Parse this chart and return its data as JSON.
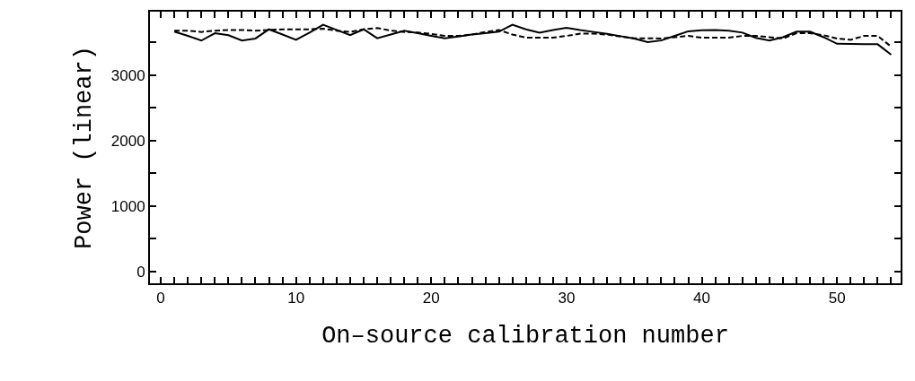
{
  "chart_data": {
    "type": "line",
    "xlabel": "On–source calibration number",
    "ylabel": "Power (linear)",
    "x": [
      1,
      2,
      3,
      4,
      5,
      6,
      7,
      8,
      9,
      10,
      11,
      12,
      13,
      14,
      15,
      16,
      17,
      18,
      19,
      20,
      21,
      22,
      23,
      24,
      25,
      26,
      27,
      28,
      29,
      30,
      31,
      32,
      33,
      34,
      35,
      36,
      37,
      38,
      39,
      40,
      41,
      42,
      43,
      44,
      45,
      46,
      47,
      48,
      49,
      50,
      51,
      52,
      53,
      54
    ],
    "series": [
      {
        "color": "#000000",
        "line_style": "solid",
        "values": [
          3665,
          3600,
          3528,
          3640,
          3610,
          3530,
          3560,
          3700,
          3620,
          3541,
          3650,
          3771,
          3690,
          3610,
          3700,
          3564,
          3620,
          3680,
          3640,
          3600,
          3564,
          3590,
          3620,
          3640,
          3665,
          3771,
          3700,
          3647,
          3690,
          3725,
          3690,
          3660,
          3630,
          3595,
          3560,
          3505,
          3530,
          3600,
          3670,
          3685,
          3690,
          3680,
          3650,
          3570,
          3530,
          3580,
          3665,
          3665,
          3580,
          3480,
          3476,
          3474,
          3472,
          3312
        ]
      },
      {
        "color": "#000000",
        "line_style": "dashed",
        "values": [
          3680,
          3680,
          3660,
          3680,
          3690,
          3690,
          3680,
          3690,
          3700,
          3700,
          3700,
          3710,
          3680,
          3660,
          3700,
          3720,
          3680,
          3660,
          3650,
          3630,
          3600,
          3600,
          3620,
          3660,
          3690,
          3620,
          3573,
          3573,
          3573,
          3600,
          3633,
          3633,
          3620,
          3590,
          3564,
          3564,
          3560,
          3580,
          3600,
          3573,
          3573,
          3573,
          3600,
          3600,
          3580,
          3560,
          3640,
          3640,
          3610,
          3560,
          3540,
          3600,
          3600,
          3436
        ]
      }
    ],
    "xlim": [
      -0.8,
      54.7
    ],
    "ylim": [
      -180,
      3970
    ],
    "xticks": [
      0,
      {
        "value": 1,
        "label": null
      },
      {
        "value": 2,
        "label": null
      },
      {
        "value": 3,
        "label": null
      },
      {
        "value": 4,
        "label": null
      },
      {
        "value": 5,
        "label": null
      },
      {
        "value": 6,
        "label": null
      },
      {
        "value": 7,
        "label": null
      },
      {
        "value": 8,
        "label": null
      },
      {
        "value": 9,
        "label": null
      },
      10,
      {
        "value": 11,
        "label": null
      },
      {
        "value": 12,
        "label": null
      },
      {
        "value": 13,
        "label": null
      },
      {
        "value": 14,
        "label": null
      },
      {
        "value": 15,
        "label": null
      },
      {
        "value": 16,
        "label": null
      },
      {
        "value": 17,
        "label": null
      },
      {
        "value": 18,
        "label": null
      },
      {
        "value": 19,
        "label": null
      },
      20,
      {
        "value": 21,
        "label": null
      },
      {
        "value": 22,
        "label": null
      },
      {
        "value": 23,
        "label": null
      },
      {
        "value": 24,
        "label": null
      },
      {
        "value": 25,
        "label": null
      },
      {
        "value": 26,
        "label": null
      },
      {
        "value": 27,
        "label": null
      },
      {
        "value": 28,
        "label": null
      },
      {
        "value": 29,
        "label": null
      },
      30,
      {
        "value": 31,
        "label": null
      },
      {
        "value": 32,
        "label": null
      },
      {
        "value": 33,
        "label": null
      },
      {
        "value": 34,
        "label": null
      },
      {
        "value": 35,
        "label": null
      },
      {
        "value": 36,
        "label": null
      },
      {
        "value": 37,
        "label": null
      },
      {
        "value": 38,
        "label": null
      },
      {
        "value": 39,
        "label": null
      },
      40,
      {
        "value": 41,
        "label": null
      },
      {
        "value": 42,
        "label": null
      },
      {
        "value": 43,
        "label": null
      },
      {
        "value": 44,
        "label": null
      },
      {
        "value": 45,
        "label": null
      },
      {
        "value": 46,
        "label": null
      },
      {
        "value": 47,
        "label": null
      },
      {
        "value": 48,
        "label": null
      },
      {
        "value": 49,
        "label": null
      },
      50,
      {
        "value": 51,
        "label": null
      },
      {
        "value": 52,
        "label": null
      },
      {
        "value": 53,
        "label": null
      },
      {
        "value": 54,
        "label": null
      }
    ],
    "yticks": [
      0,
      {
        "value": 500,
        "label": null
      },
      1000,
      {
        "value": 1500,
        "label": null
      },
      2000,
      {
        "value": 2500,
        "label": null
      },
      3000,
      {
        "value": 3500,
        "label": null
      }
    ],
    "marker": "none"
  }
}
